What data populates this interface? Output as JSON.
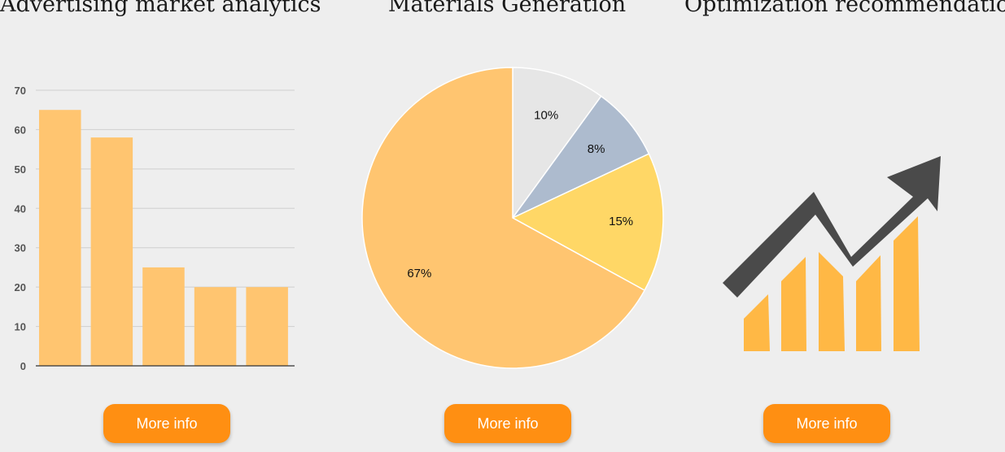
{
  "panels": [
    {
      "title": "Advertising market analytics",
      "button_label": "More info"
    },
    {
      "title": "Materials Generation",
      "button_label": "More info"
    },
    {
      "title": "Optimization recommendations",
      "button_label": "More info"
    }
  ],
  "chart_data": [
    {
      "type": "bar",
      "categories": [
        "",
        "",
        "",
        "",
        ""
      ],
      "values": [
        65,
        58,
        25,
        20,
        20
      ],
      "ylim": [
        0,
        70
      ],
      "yticks": [
        0,
        10,
        20,
        30,
        40,
        50,
        60,
        70
      ],
      "grid": true,
      "color": "#ffc570"
    },
    {
      "type": "pie",
      "slices": [
        {
          "label": "10%",
          "value": 10,
          "color": "#e6e6e6"
        },
        {
          "label": "8%",
          "value": 8,
          "color": "#adbbce"
        },
        {
          "label": "15%",
          "value": 15,
          "color": "#ffd766"
        },
        {
          "label": "67%",
          "value": 67,
          "color": "#ffc570"
        }
      ]
    }
  ],
  "icons": {
    "trend": "growth-chart-arrow-icon"
  },
  "colors": {
    "accent": "#ff8f12",
    "arrow": "#4a4a4a",
    "bars": "#ffb845"
  }
}
